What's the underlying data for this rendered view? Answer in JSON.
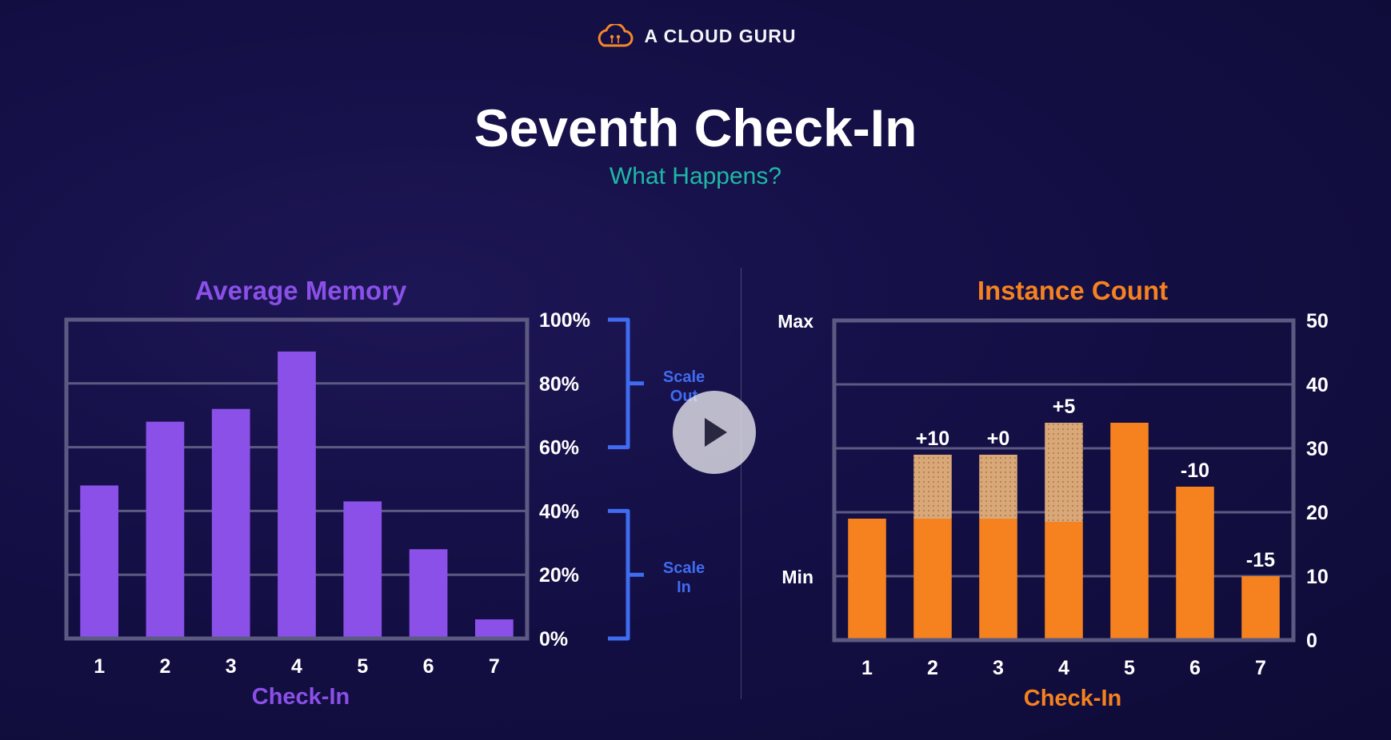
{
  "brand": {
    "name": "A CLOUD GURU",
    "icon": "cloud-logo-icon",
    "color": "#f5872a"
  },
  "header": {
    "title": "Seventh Check-In",
    "subtitle": "What Happens?"
  },
  "colors": {
    "memory": "#8a50e8",
    "instance": "#f5821f",
    "bracket": "#3f6cf0",
    "frame": "#5c5a82",
    "subtitle": "#1fb8a4"
  },
  "player": {
    "play_icon": "play-icon"
  },
  "chart_data": [
    {
      "type": "bar",
      "title": "Average Memory",
      "xlabel": "Check-In",
      "categories": [
        "1",
        "2",
        "3",
        "4",
        "5",
        "6",
        "7"
      ],
      "values": [
        48,
        68,
        72,
        90,
        43,
        28,
        6
      ],
      "ylim": [
        0,
        100
      ],
      "yticks": [
        "100%",
        "80%",
        "60%",
        "40%",
        "20%",
        "0%"
      ],
      "grid": true,
      "annotations": [
        {
          "label_lines": [
            "Scale",
            "Out"
          ],
          "range": [
            60,
            100
          ]
        },
        {
          "label_lines": [
            "Scale",
            "In"
          ],
          "range": [
            0,
            40
          ]
        }
      ]
    },
    {
      "type": "bar",
      "title": "Instance Count",
      "xlabel": "Check-In",
      "categories": [
        "1",
        "2",
        "3",
        "4",
        "5",
        "6",
        "7"
      ],
      "values": [
        19,
        19,
        19,
        18.5,
        34,
        24,
        10
      ],
      "added": [
        0,
        10,
        10,
        15.5,
        0,
        0,
        0
      ],
      "change_labels": [
        "",
        "+10",
        "+0",
        "+5",
        "",
        "-10",
        "-15"
      ],
      "ylim": [
        0,
        50
      ],
      "yticks": [
        "50",
        "40",
        "30",
        "20",
        "10",
        "0"
      ],
      "limits": [
        {
          "label": "Max",
          "value": 50
        },
        {
          "label": "Min",
          "value": 10
        }
      ],
      "grid": true
    }
  ]
}
